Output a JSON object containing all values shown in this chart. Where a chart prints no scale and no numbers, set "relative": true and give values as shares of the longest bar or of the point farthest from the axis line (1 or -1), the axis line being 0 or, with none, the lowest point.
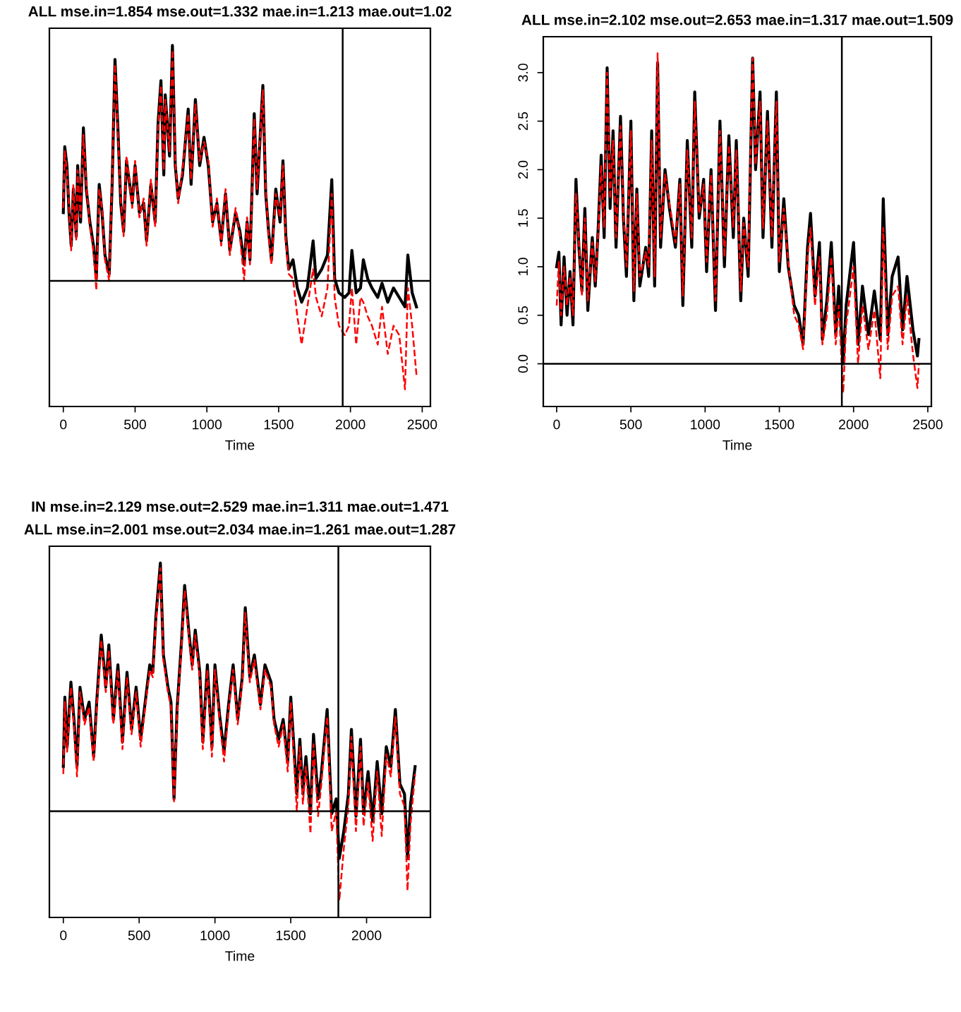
{
  "chart_data": [
    {
      "type": "line",
      "title": "ALL mse.in=1.854 mse.out=1.332 mae.in=1.213 mae.out=1.02",
      "xlabel": "Time",
      "relative": true,
      "tick_labels": "x",
      "xlim": [
        -97,
        2557
      ],
      "xticks": [
        0,
        500,
        1000,
        1500,
        2000,
        2500
      ],
      "grid": false,
      "ref_lines": [
        {
          "axis": "x",
          "value": 1946,
          "color": "#000000"
        },
        {
          "axis": "y",
          "value": 0,
          "color": "#000000"
        }
      ],
      "series": [
        {
          "color": "#000000",
          "line_style": "solid",
          "x": [
            0,
            10,
            25,
            40,
            55,
            70,
            90,
            100,
            120,
            140,
            160,
            185,
            210,
            230,
            250,
            270,
            290,
            320,
            340,
            360,
            380,
            400,
            420,
            440,
            480,
            500,
            530,
            560,
            580,
            610,
            640,
            660,
            680,
            700,
            710,
            740,
            760,
            780,
            800,
            830,
            870,
            890,
            920,
            950,
            980,
            1010,
            1040,
            1070,
            1100,
            1130,
            1160,
            1200,
            1230,
            1260,
            1280,
            1300,
            1330,
            1350,
            1390,
            1410,
            1430,
            1450,
            1480,
            1510,
            1530,
            1550,
            1570,
            1600,
            1630,
            1660,
            1700,
            1740,
            1760,
            1800,
            1840,
            1870,
            1890,
            1920,
            1960,
            1990,
            2010,
            2040,
            2070,
            2090,
            2120,
            2150,
            2190,
            2220,
            2260,
            2300,
            2340,
            2380,
            2400,
            2430,
            2460
          ],
          "values": [
            0.29,
            0.57,
            0.49,
            0.29,
            0.15,
            0.39,
            0.19,
            0.49,
            0.25,
            0.65,
            0.39,
            0.25,
            0.15,
            0.01,
            0.41,
            0.29,
            0.11,
            0.03,
            0.41,
            0.94,
            0.65,
            0.33,
            0.21,
            0.51,
            0.33,
            0.49,
            0.29,
            0.33,
            0.17,
            0.41,
            0.25,
            0.67,
            0.85,
            0.45,
            0.79,
            0.53,
            1.0,
            0.49,
            0.35,
            0.45,
            0.73,
            0.41,
            0.77,
            0.49,
            0.61,
            0.49,
            0.25,
            0.33,
            0.17,
            0.37,
            0.13,
            0.29,
            0.21,
            0.07,
            0.25,
            0.09,
            0.71,
            0.37,
            0.83,
            0.37,
            0.21,
            0.09,
            0.39,
            0.25,
            0.51,
            0.19,
            0.05,
            0.09,
            -0.03,
            -0.09,
            -0.03,
            0.17,
            0.01,
            0.05,
            0.11,
            0.43,
            0.01,
            -0.05,
            -0.07,
            -0.05,
            0.13,
            -0.05,
            -0.03,
            0.09,
            0.01,
            -0.03,
            -0.07,
            -0.01,
            -0.09,
            -0.03,
            -0.07,
            -0.11,
            0.11,
            -0.05,
            -0.11
          ]
        },
        {
          "color": "#ff0000",
          "line_style": "dashed",
          "x": [
            0,
            10,
            25,
            40,
            55,
            70,
            90,
            100,
            120,
            140,
            160,
            185,
            210,
            230,
            250,
            270,
            290,
            320,
            340,
            360,
            380,
            400,
            420,
            440,
            480,
            500,
            530,
            560,
            580,
            610,
            640,
            660,
            680,
            700,
            710,
            740,
            760,
            780,
            800,
            830,
            870,
            890,
            920,
            950,
            980,
            1010,
            1040,
            1070,
            1100,
            1130,
            1160,
            1200,
            1230,
            1260,
            1280,
            1300,
            1330,
            1350,
            1390,
            1410,
            1430,
            1450,
            1480,
            1510,
            1530,
            1550,
            1570,
            1600,
            1630,
            1660,
            1700,
            1740,
            1760,
            1800,
            1840,
            1870,
            1890,
            1920,
            1960,
            1990,
            2010,
            2040,
            2070,
            2090,
            2120,
            2150,
            2190,
            2220,
            2260,
            2300,
            2340,
            2380,
            2400,
            2430,
            2460
          ],
          "values": [
            0.31,
            0.55,
            0.47,
            0.31,
            0.13,
            0.41,
            0.17,
            0.47,
            0.27,
            0.62,
            0.41,
            0.23,
            0.13,
            -0.04,
            0.39,
            0.31,
            0.09,
            0.0,
            0.43,
            0.92,
            0.63,
            0.35,
            0.19,
            0.53,
            0.31,
            0.51,
            0.27,
            0.35,
            0.15,
            0.43,
            0.23,
            0.65,
            0.83,
            0.47,
            0.77,
            0.55,
            0.98,
            0.51,
            0.33,
            0.47,
            0.71,
            0.43,
            0.75,
            0.51,
            0.59,
            0.51,
            0.23,
            0.35,
            0.15,
            0.39,
            0.11,
            0.31,
            0.19,
            0.0,
            0.27,
            0.07,
            0.69,
            0.39,
            0.81,
            0.39,
            0.19,
            0.07,
            0.37,
            0.27,
            0.49,
            0.17,
            0.03,
            0.01,
            -0.15,
            -0.27,
            -0.11,
            0.05,
            -0.07,
            -0.15,
            -0.03,
            0.37,
            -0.07,
            -0.19,
            -0.23,
            -0.19,
            -0.03,
            -0.27,
            -0.07,
            -0.09,
            -0.15,
            -0.19,
            -0.27,
            -0.11,
            -0.31,
            -0.19,
            -0.23,
            -0.46,
            -0.03,
            -0.19,
            -0.4
          ]
        }
      ]
    },
    {
      "type": "line",
      "title": "ALL mse.in=2.102 mse.out=2.653 mae.in=1.317 mae.out=1.509",
      "xlabel": "Time",
      "xlim": [
        -90,
        2524
      ],
      "xticks": [
        0,
        500,
        1000,
        1500,
        2000,
        2500
      ],
      "ylim": [
        -0.44,
        3.37
      ],
      "yticks": [
        {
          "value": 0,
          "label": "0.0"
        },
        {
          "value": 0.5,
          "label": "0.5"
        },
        {
          "value": 1,
          "label": "1.0"
        },
        {
          "value": 1.5,
          "label": "1.5"
        },
        {
          "value": 2,
          "label": "2.0"
        },
        {
          "value": 2.5,
          "label": "2.5"
        },
        {
          "value": 3,
          "label": "3.0"
        }
      ],
      "grid": false,
      "ref_lines": [
        {
          "axis": "x",
          "value": 1921,
          "color": "#000000"
        },
        {
          "axis": "y",
          "value": 0,
          "color": "#000000"
        }
      ],
      "series": [
        {
          "color": "#000000",
          "line_style": "solid",
          "x": [
            0,
            15,
            30,
            50,
            70,
            90,
            110,
            130,
            150,
            170,
            190,
            210,
            240,
            260,
            280,
            300,
            320,
            340,
            360,
            380,
            400,
            430,
            450,
            470,
            500,
            520,
            540,
            560,
            600,
            620,
            640,
            660,
            680,
            700,
            730,
            760,
            800,
            830,
            850,
            880,
            910,
            930,
            960,
            990,
            1010,
            1040,
            1070,
            1100,
            1130,
            1160,
            1190,
            1210,
            1240,
            1260,
            1290,
            1320,
            1340,
            1370,
            1390,
            1420,
            1450,
            1480,
            1500,
            1530,
            1560,
            1600,
            1630,
            1660,
            1690,
            1710,
            1740,
            1770,
            1790,
            1820,
            1850,
            1880,
            1900,
            1930,
            1950,
            2000,
            2030,
            2060,
            2100,
            2140,
            2180,
            2200,
            2230,
            2260,
            2300,
            2330,
            2360,
            2400,
            2430,
            2440
          ],
          "values": [
            1.0,
            1.15,
            0.4,
            1.1,
            0.5,
            0.95,
            0.4,
            1.9,
            1.2,
            0.75,
            1.6,
            0.55,
            1.3,
            0.8,
            1.4,
            2.15,
            1.3,
            3.05,
            1.6,
            2.4,
            1.2,
            2.55,
            1.5,
            0.9,
            2.5,
            0.65,
            1.8,
            0.8,
            1.2,
            0.9,
            2.4,
            0.8,
            3.1,
            1.2,
            2.0,
            1.6,
            1.2,
            1.9,
            0.6,
            2.3,
            1.2,
            2.8,
            1.5,
            1.9,
            0.95,
            2.0,
            0.55,
            2.5,
            1.0,
            2.35,
            1.3,
            2.3,
            0.65,
            1.5,
            0.9,
            3.15,
            2.0,
            2.8,
            1.3,
            2.6,
            1.2,
            2.8,
            0.95,
            1.7,
            1.0,
            0.6,
            0.5,
            0.2,
            1.2,
            1.55,
            0.7,
            1.25,
            0.25,
            0.65,
            1.25,
            0.3,
            0.8,
            0.0,
            0.6,
            1.25,
            0.2,
            0.8,
            0.3,
            0.75,
            0.25,
            1.7,
            0.3,
            0.9,
            1.1,
            0.35,
            0.9,
            0.35,
            0.08,
            0.25
          ]
        },
        {
          "color": "#ff0000",
          "line_style": "dashed",
          "x": [
            0,
            15,
            30,
            50,
            70,
            90,
            110,
            130,
            150,
            170,
            190,
            210,
            240,
            260,
            280,
            300,
            320,
            340,
            360,
            380,
            400,
            430,
            450,
            470,
            500,
            520,
            540,
            560,
            600,
            620,
            640,
            660,
            680,
            700,
            730,
            760,
            800,
            830,
            850,
            880,
            910,
            930,
            960,
            990,
            1010,
            1040,
            1070,
            1100,
            1130,
            1160,
            1190,
            1210,
            1240,
            1260,
            1290,
            1320,
            1340,
            1370,
            1390,
            1420,
            1450,
            1480,
            1500,
            1530,
            1560,
            1600,
            1630,
            1660,
            1690,
            1710,
            1740,
            1770,
            1790,
            1820,
            1850,
            1880,
            1900,
            1930,
            1950,
            2000,
            2030,
            2060,
            2100,
            2140,
            2180,
            2200,
            2230,
            2260,
            2300,
            2330,
            2360,
            2400,
            2430,
            2440
          ],
          "values": [
            0.6,
            1.05,
            0.5,
            1.0,
            0.6,
            0.9,
            0.5,
            1.75,
            1.25,
            0.7,
            1.5,
            0.65,
            1.25,
            0.85,
            1.35,
            2.05,
            1.4,
            3.0,
            1.7,
            2.3,
            1.3,
            2.45,
            1.55,
            1.0,
            2.4,
            0.75,
            1.75,
            0.9,
            1.15,
            1.0,
            2.3,
            0.9,
            3.2,
            1.3,
            1.95,
            1.65,
            1.25,
            1.85,
            0.7,
            2.2,
            1.3,
            2.7,
            1.55,
            1.85,
            1.05,
            1.95,
            0.65,
            2.4,
            1.1,
            2.25,
            1.4,
            2.2,
            0.75,
            1.45,
            1.0,
            3.15,
            2.05,
            2.7,
            1.4,
            2.5,
            1.3,
            2.7,
            1.05,
            1.6,
            1.05,
            0.5,
            0.4,
            0.15,
            1.1,
            1.4,
            0.6,
            1.1,
            0.2,
            0.5,
            1.1,
            0.2,
            0.6,
            -0.3,
            0.4,
            1.0,
            0.0,
            0.6,
            0.15,
            0.55,
            -0.15,
            1.4,
            0.15,
            0.7,
            0.8,
            0.2,
            0.7,
            0.1,
            -0.25,
            0.0
          ]
        }
      ]
    },
    {
      "type": "line",
      "title": "IN mse.in=2.129 mse.out=2.529 mae.in=1.311 mae.out=1.471",
      "subtitle": "ALL mse.in=2.001 mse.out=2.034 mae.in=1.261 mae.out=1.287",
      "xlabel": "Time",
      "relative": true,
      "tick_labels": "x",
      "xlim": [
        -92,
        2421
      ],
      "xticks": [
        0,
        500,
        1000,
        1500,
        2000
      ],
      "grid": false,
      "ref_lines": [
        {
          "axis": "x",
          "value": 1814,
          "color": "#000000"
        },
        {
          "axis": "y",
          "value": 0,
          "color": "#000000"
        }
      ],
      "series": [
        {
          "color": "#000000",
          "line_style": "solid",
          "x": [
            0,
            10,
            25,
            50,
            70,
            90,
            110,
            140,
            170,
            200,
            220,
            250,
            280,
            300,
            330,
            360,
            390,
            420,
            450,
            480,
            510,
            540,
            570,
            590,
            610,
            640,
            660,
            690,
            710,
            730,
            750,
            780,
            800,
            830,
            850,
            870,
            900,
            920,
            950,
            980,
            1000,
            1030,
            1060,
            1090,
            1120,
            1150,
            1180,
            1200,
            1230,
            1260,
            1300,
            1330,
            1370,
            1390,
            1420,
            1450,
            1480,
            1500,
            1540,
            1560,
            1580,
            1600,
            1630,
            1650,
            1680,
            1700,
            1740,
            1770,
            1800,
            1820,
            1850,
            1880,
            1900,
            1930,
            1960,
            1980,
            2010,
            2040,
            2070,
            2100,
            2130,
            2160,
            2190,
            2220,
            2250,
            2270,
            2290,
            2320
          ],
          "values": [
            0.18,
            0.46,
            0.26,
            0.52,
            0.37,
            0.18,
            0.5,
            0.37,
            0.44,
            0.22,
            0.44,
            0.71,
            0.5,
            0.67,
            0.37,
            0.59,
            0.28,
            0.56,
            0.33,
            0.5,
            0.29,
            0.44,
            0.59,
            0.56,
            0.78,
            1.0,
            0.63,
            0.5,
            0.44,
            0.05,
            0.41,
            0.69,
            0.91,
            0.71,
            0.59,
            0.73,
            0.56,
            0.28,
            0.59,
            0.26,
            0.59,
            0.39,
            0.24,
            0.43,
            0.59,
            0.37,
            0.54,
            0.82,
            0.54,
            0.63,
            0.43,
            0.59,
            0.52,
            0.37,
            0.29,
            0.37,
            0.2,
            0.46,
            0.07,
            0.29,
            0.07,
            0.22,
            -0.01,
            0.31,
            0.05,
            0.14,
            0.41,
            -0.01,
            0.05,
            -0.19,
            -0.08,
            0.07,
            0.33,
            -0.02,
            0.29,
            -0.01,
            0.16,
            -0.04,
            0.2,
            -0.01,
            0.26,
            0.18,
            0.41,
            0.11,
            0.07,
            -0.19,
            0.03,
            0.18
          ]
        },
        {
          "color": "#ff0000",
          "line_style": "dashed",
          "x": [
            0,
            10,
            25,
            50,
            70,
            90,
            110,
            140,
            170,
            200,
            220,
            250,
            280,
            300,
            330,
            360,
            390,
            420,
            450,
            480,
            510,
            540,
            570,
            590,
            610,
            640,
            660,
            690,
            710,
            730,
            750,
            780,
            800,
            830,
            850,
            870,
            900,
            920,
            950,
            980,
            1000,
            1030,
            1060,
            1090,
            1120,
            1150,
            1180,
            1200,
            1230,
            1260,
            1300,
            1330,
            1370,
            1390,
            1420,
            1450,
            1480,
            1500,
            1540,
            1560,
            1580,
            1600,
            1630,
            1650,
            1680,
            1700,
            1740,
            1770,
            1800,
            1820,
            1850,
            1880,
            1900,
            1930,
            1960,
            1980,
            2010,
            2040,
            2070,
            2100,
            2130,
            2160,
            2190,
            2220,
            2250,
            2270,
            2290,
            2320
          ],
          "values": [
            0.15,
            0.44,
            0.24,
            0.5,
            0.35,
            0.14,
            0.48,
            0.35,
            0.42,
            0.2,
            0.42,
            0.69,
            0.48,
            0.65,
            0.35,
            0.57,
            0.25,
            0.54,
            0.31,
            0.48,
            0.26,
            0.42,
            0.57,
            0.54,
            0.76,
            0.98,
            0.61,
            0.48,
            0.42,
            0.04,
            0.39,
            0.67,
            0.89,
            0.69,
            0.57,
            0.71,
            0.54,
            0.25,
            0.57,
            0.22,
            0.57,
            0.37,
            0.2,
            0.41,
            0.57,
            0.35,
            0.52,
            0.8,
            0.52,
            0.61,
            0.41,
            0.57,
            0.5,
            0.35,
            0.26,
            0.35,
            0.16,
            0.44,
            0.0,
            0.26,
            0.03,
            0.18,
            -0.09,
            0.27,
            -0.02,
            0.1,
            0.38,
            -0.08,
            0.0,
            -0.36,
            -0.15,
            0.02,
            0.3,
            -0.08,
            0.26,
            -0.06,
            0.12,
            -0.12,
            0.16,
            -0.1,
            0.23,
            0.14,
            0.38,
            0.07,
            0.02,
            -0.32,
            -0.05,
            0.15
          ]
        }
      ]
    }
  ]
}
